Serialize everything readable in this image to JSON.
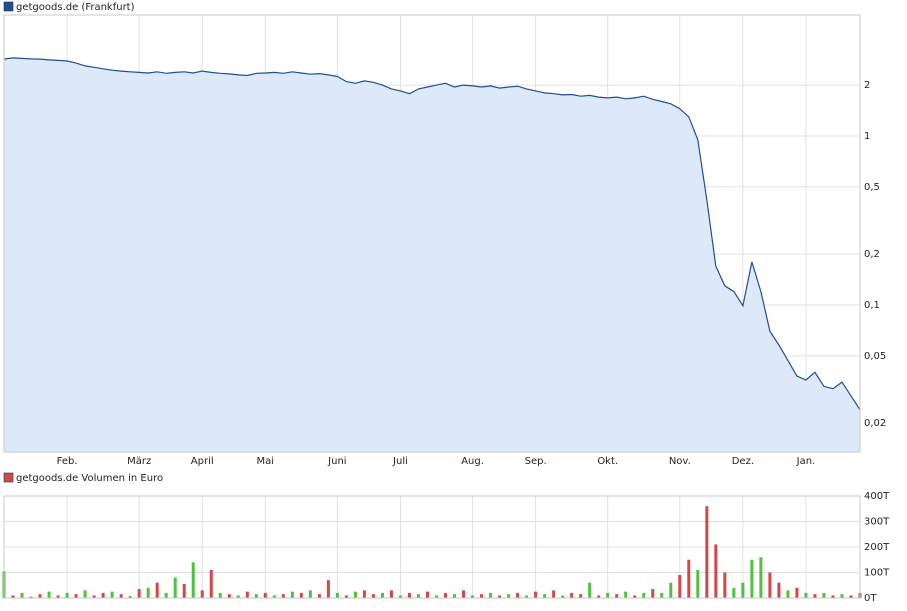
{
  "chart_data": [
    {
      "type": "line",
      "log_scale": true,
      "grid": true,
      "area_fill": "#dde8f8",
      "categories": [
        null,
        null,
        null,
        null,
        null,
        null,
        null,
        "Feb.",
        null,
        null,
        null,
        null,
        null,
        null,
        null,
        "März",
        null,
        null,
        null,
        null,
        null,
        null,
        "April",
        null,
        null,
        null,
        null,
        null,
        null,
        "Mai",
        null,
        null,
        null,
        null,
        null,
        null,
        null,
        "Juni",
        null,
        null,
        null,
        null,
        null,
        null,
        "Juli",
        null,
        null,
        null,
        null,
        null,
        null,
        null,
        "Aug.",
        null,
        null,
        null,
        null,
        null,
        null,
        "Sep.",
        null,
        null,
        null,
        null,
        null,
        null,
        null,
        "Okt.",
        null,
        null,
        null,
        null,
        null,
        null,
        null,
        "Nov.",
        null,
        null,
        null,
        null,
        null,
        null,
        "Dez.",
        null,
        null,
        null,
        null,
        null,
        null,
        "Jan.",
        null,
        null,
        null,
        null,
        null,
        null
      ],
      "series": [
        {
          "name": "getgoods.de (Frankfurt)",
          "color": "#1f4e96",
          "values": [
            2.85,
            2.9,
            2.88,
            2.86,
            2.85,
            2.82,
            2.8,
            2.78,
            2.7,
            2.6,
            2.55,
            2.5,
            2.45,
            2.42,
            2.4,
            2.38,
            2.36,
            2.4,
            2.35,
            2.38,
            2.4,
            2.36,
            2.42,
            2.38,
            2.35,
            2.33,
            2.3,
            2.28,
            2.35,
            2.36,
            2.38,
            2.35,
            2.4,
            2.36,
            2.32,
            2.34,
            2.3,
            2.25,
            2.1,
            2.05,
            2.12,
            2.08,
            2.0,
            1.9,
            1.85,
            1.78,
            1.9,
            1.95,
            2.0,
            2.05,
            1.95,
            2.0,
            1.98,
            1.95,
            1.98,
            1.92,
            1.95,
            1.97,
            1.9,
            1.85,
            1.8,
            1.78,
            1.75,
            1.76,
            1.72,
            1.74,
            1.7,
            1.68,
            1.7,
            1.66,
            1.68,
            1.72,
            1.65,
            1.6,
            1.55,
            1.45,
            1.3,
            0.95,
            0.42,
            0.17,
            0.13,
            0.12,
            0.099,
            0.18,
            0.12,
            0.07,
            0.058,
            0.047,
            0.038,
            0.036,
            0.04,
            0.033,
            0.032,
            0.035,
            0.029,
            0.024
          ]
        }
      ],
      "ylim": [
        0.0135,
        5.2
      ],
      "yticks": [
        2,
        1,
        {
          "value": 0.5,
          "label": "0,5"
        },
        {
          "value": 0.2,
          "label": "0,2"
        },
        {
          "value": 0.1,
          "label": "0,1"
        },
        {
          "value": 0.05,
          "label": "0,05"
        },
        {
          "value": 0.02,
          "label": "0,02"
        }
      ]
    },
    {
      "type": "bar",
      "grid": true,
      "series": [
        {
          "name": "getgoods.de Volumen in Euro",
          "color": "#d04848",
          "values": [
            105,
            10,
            20,
            5,
            15,
            25,
            10,
            20,
            15,
            30,
            10,
            20,
            25,
            15,
            8,
            35,
            40,
            60,
            20,
            80,
            55,
            140,
            30,
            110,
            20,
            15,
            10,
            25,
            15,
            20,
            10,
            15,
            25,
            20,
            30,
            15,
            70,
            20,
            10,
            25,
            30,
            15,
            20,
            30,
            10,
            20,
            15,
            25,
            10,
            20,
            15,
            30,
            10,
            15,
            20,
            10,
            15,
            20,
            10,
            25,
            15,
            30,
            10,
            20,
            15,
            60,
            10,
            20,
            15,
            25,
            10,
            20,
            35,
            20,
            60,
            90,
            150,
            110,
            360,
            210,
            100,
            40,
            60,
            150,
            160,
            100,
            60,
            30,
            40,
            20,
            15,
            20,
            10,
            15,
            10,
            20
          ],
          "colors": [
            "#50c040",
            "#d04848",
            "#50c040",
            "#d04848",
            "#d04848",
            "#50c040",
            "#d04848",
            "#50c040",
            "#d04848",
            "#50c040",
            "#d04848",
            "#d04848",
            "#50c040",
            "#d04848",
            "#50c040",
            "#d04848",
            "#50c040",
            "#d04848",
            "#50c040",
            "#50c040",
            "#d04848",
            "#50c040",
            "#d04848",
            "#d04848",
            "#50c040",
            "#d04848",
            "#50c040",
            "#d04848",
            "#50c040",
            "#d04848",
            "#50c040",
            "#d04848",
            "#50c040",
            "#d04848",
            "#50c040",
            "#d04848",
            "#d04848",
            "#50c040",
            "#d04848",
            "#50c040",
            "#d04848",
            "#d04848",
            "#50c040",
            "#d04848",
            "#50c040",
            "#d04848",
            "#50c040",
            "#d04848",
            "#50c040",
            "#d04848",
            "#50c040",
            "#d04848",
            "#50c040",
            "#d04848",
            "#50c040",
            "#d04848",
            "#50c040",
            "#d04848",
            "#50c040",
            "#d04848",
            "#50c040",
            "#d04848",
            "#50c040",
            "#d04848",
            "#d04848",
            "#50c040",
            "#d04848",
            "#50c040",
            "#d04848",
            "#50c040",
            "#d04848",
            "#50c040",
            "#d04848",
            "#50c040",
            "#50c040",
            "#d04848",
            "#d04848",
            "#50c040",
            "#d04848",
            "#d04848",
            "#d04848",
            "#50c040",
            "#50c040",
            "#50c040",
            "#50c040",
            "#d04848",
            "#d04848",
            "#50c040",
            "#d04848",
            "#50c040",
            "#d04848",
            "#50c040",
            "#d04848",
            "#50c040",
            "#d04848",
            "#d04848"
          ]
        }
      ],
      "ylim": [
        0,
        400
      ],
      "yticks": [
        {
          "value": 0,
          "label": "0T"
        },
        {
          "value": 100,
          "label": "100T"
        },
        {
          "value": 200,
          "label": "200T"
        },
        {
          "value": 300,
          "label": "300T"
        },
        {
          "value": 400,
          "label": "400T"
        }
      ]
    }
  ]
}
